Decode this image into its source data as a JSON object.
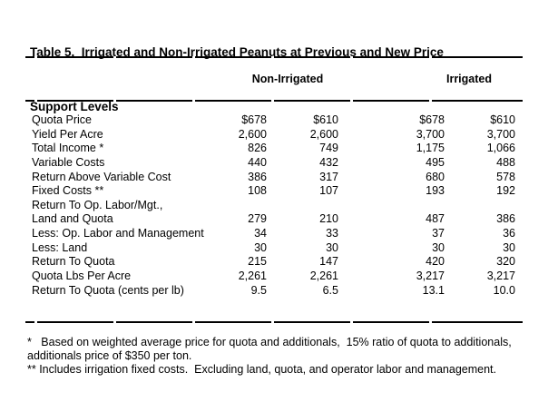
{
  "title": {
    "line1": "Table 5.  Irrigated and Non-Irrigated Peanuts at Previous and New Price",
    "line2": "Support Levels"
  },
  "table": {
    "column_groups": [
      {
        "label": "Non-Irrigated"
      },
      {
        "label": "Irrigated"
      }
    ],
    "rows": [
      {
        "label": "Quota Price",
        "values": [
          "$678",
          "$610",
          "$678",
          "$610"
        ]
      },
      {
        "label": "Yield Per Acre",
        "values": [
          "2,600",
          "2,600",
          "3,700",
          "3,700"
        ]
      },
      {
        "label": "Total Income *",
        "values": [
          "826",
          "749",
          "1,175",
          "1,066"
        ]
      },
      {
        "label": "Variable Costs",
        "values": [
          "440",
          "432",
          "495",
          "488"
        ]
      },
      {
        "label": "Return Above Variable Cost",
        "values": [
          "386",
          "317",
          "680",
          "578"
        ]
      },
      {
        "label": "Fixed Costs **",
        "values": [
          "108",
          "107",
          "193",
          "192"
        ]
      },
      {
        "label": "Return To Op. Labor/Mgt.,",
        "values": [
          "",
          "",
          "",
          ""
        ]
      },
      {
        "label": "Land and Quota",
        "values": [
          "279",
          "210",
          "487",
          "386"
        ]
      },
      {
        "label": "Less: Op. Labor and Management",
        "values": [
          "34",
          "33",
          "37",
          "36"
        ]
      },
      {
        "label": "Less: Land",
        "values": [
          "30",
          "30",
          "30",
          "30"
        ]
      },
      {
        "label": "Return To Quota",
        "values": [
          "215",
          "147",
          "420",
          "320"
        ]
      },
      {
        "label": "Quota Lbs Per Acre",
        "values": [
          "2,261",
          "2,261",
          "3,217",
          "3,217"
        ]
      },
      {
        "label": "Return To Quota (cents per lb)",
        "values": [
          "9.5",
          "6.5",
          "13.1",
          "10.0"
        ]
      }
    ]
  },
  "footnotes": {
    "lines": [
      "*   Based on weighted average price for quota and additionals,  15% ratio of quota to additionals,",
      "additionals price of $350 per ton.",
      "** Includes irrigation fixed costs.  Excluding land, quota, and operator labor and management."
    ]
  },
  "colors": {
    "text": "#000000",
    "background": "#ffffff"
  }
}
